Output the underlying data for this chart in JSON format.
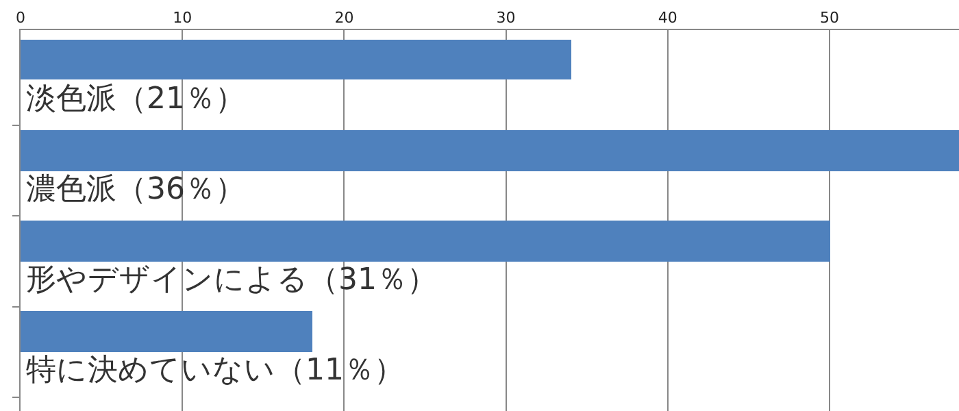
{
  "chart_data": {
    "type": "bar",
    "orientation": "horizontal",
    "categories": [
      "淡色派（21％）",
      "濃色派（36％）",
      "形やデザインによる（31％）",
      "特に決めていない（11％）"
    ],
    "values": [
      34,
      58,
      50,
      18
    ],
    "color": "#4f81bd",
    "xlim": [
      0,
      58
    ],
    "xticks": [
      0,
      10,
      20,
      30,
      40,
      50
    ],
    "grid": "x"
  }
}
